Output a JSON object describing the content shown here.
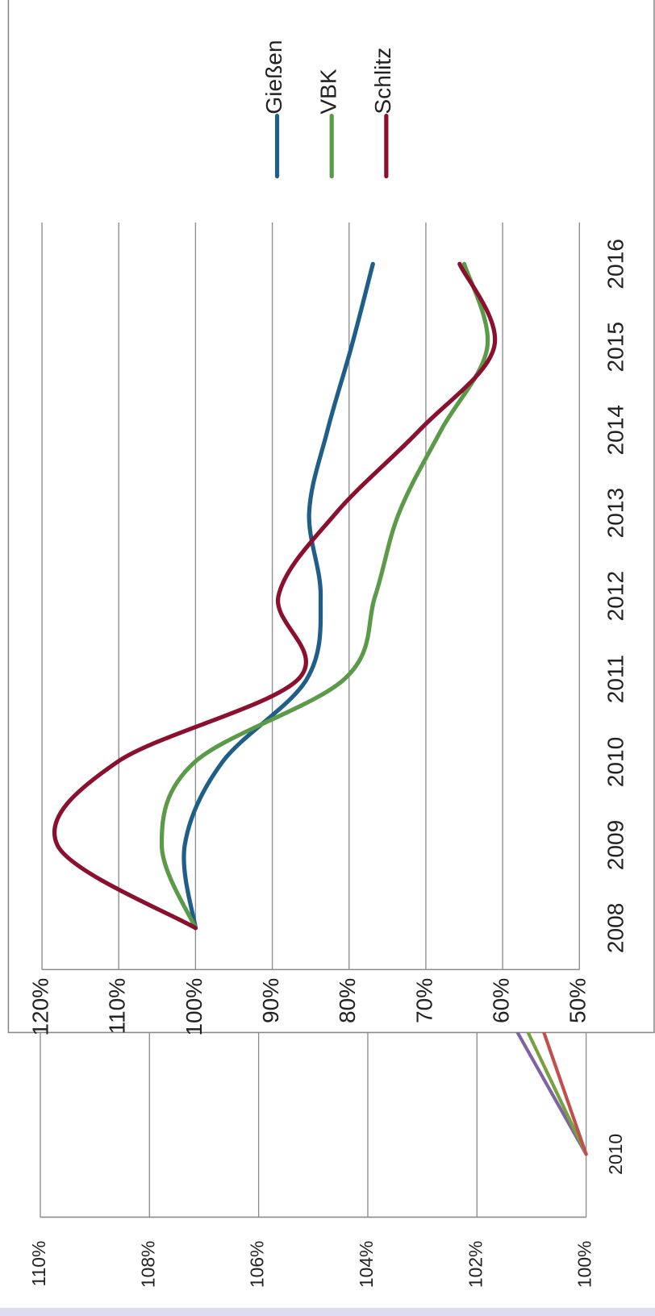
{
  "chart_data": [
    {
      "type": "line",
      "categories": [
        "2008",
        "2009",
        "2010",
        "2011",
        "2012",
        "2013",
        "2014",
        "2015",
        "2016"
      ],
      "series": [
        {
          "name": "Gießen",
          "color": "#1f5f87",
          "values": [
            100,
            101.4,
            96.5,
            85.5,
            83.7,
            85.2,
            82.8,
            79.7,
            76.9
          ]
        },
        {
          "name": "VBK",
          "color": "#5a9a48",
          "values": [
            100,
            104.4,
            100.1,
            80.6,
            76.6,
            73.5,
            68,
            62,
            65
          ]
        },
        {
          "name": "Schlitz",
          "color": "#8b0f2e",
          "values": [
            100,
            118,
            110.2,
            86.6,
            89.2,
            81.7,
            70.8,
            61.1,
            65.6
          ]
        }
      ],
      "ylim": [
        50,
        120
      ],
      "yticks": [
        {
          "value": 50,
          "label": "50%"
        },
        {
          "value": 60,
          "label": "60%"
        },
        {
          "value": 70,
          "label": "70%"
        },
        {
          "value": 80,
          "label": "80%"
        },
        {
          "value": 90,
          "label": "90%"
        },
        {
          "value": 100,
          "label": "100%"
        },
        {
          "value": 110,
          "label": "110%"
        },
        {
          "value": 120,
          "label": "120%"
        }
      ],
      "grid": true,
      "legend": "right"
    },
    {
      "type": "line",
      "categories": [
        "2010",
        null
      ],
      "series": [
        {
          "color": "#8064a2",
          "values": [
            100,
            101.3
          ]
        },
        {
          "color": "#77a03f",
          "values": [
            100,
            101.1
          ]
        },
        {
          "color": "#c0504d",
          "values": [
            100,
            100.8
          ]
        }
      ],
      "ylim": [
        100,
        110
      ],
      "yticks": [
        {
          "value": 100,
          "label": "100%"
        },
        {
          "value": 102,
          "label": "102%"
        },
        {
          "value": 104,
          "label": "104%"
        },
        {
          "value": 106,
          "label": "106%"
        },
        {
          "value": 108,
          "label": "108%"
        },
        {
          "value": 110,
          "label": "110%"
        }
      ],
      "grid": true
    }
  ]
}
